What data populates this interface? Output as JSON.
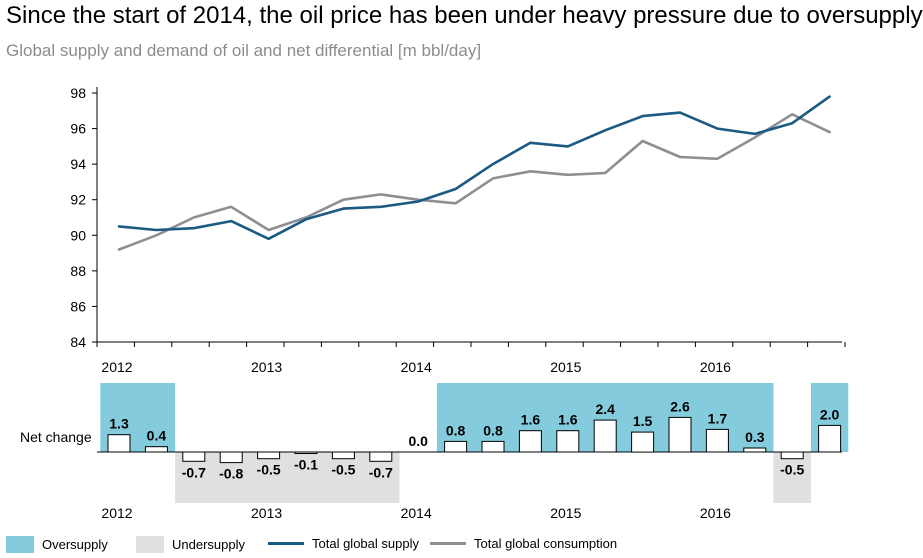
{
  "title": "Since the start of 2014, the oil price has been under heavy pressure due to oversupply",
  "subtitle": "Global supply and demand of oil and net differential [m bbl/day]",
  "colors": {
    "oversupply": "#84ccdd",
    "undersupply": "#e0e0e2",
    "supply": "#1b5a82",
    "consumption": "#8c8f94"
  },
  "chart_data": [
    {
      "type": "line",
      "ylim": [
        84,
        98
      ],
      "yticks": [
        "84",
        "86",
        "88",
        "90",
        "92",
        "94",
        "96",
        "98"
      ],
      "x_labels": [
        "2012",
        "2013",
        "2014",
        "2015",
        "2016"
      ],
      "series": [
        {
          "name": "Total global supply",
          "values": [
            90.5,
            90.3,
            90.4,
            90.8,
            89.8,
            90.9,
            91.5,
            91.6,
            91.9,
            92.6,
            94.0,
            95.2,
            95.0,
            95.9,
            96.7,
            96.9,
            96.0,
            95.7,
            96.3,
            97.8
          ]
        },
        {
          "name": "Total global consumption",
          "values": [
            89.2,
            90.0,
            91.0,
            91.6,
            90.3,
            91.0,
            92.0,
            92.3,
            92.0,
            91.8,
            93.2,
            93.6,
            93.4,
            93.5,
            95.3,
            94.4,
            94.3,
            95.5,
            96.8,
            95.8
          ]
        }
      ]
    },
    {
      "type": "bar",
      "ylabel": "Net change",
      "x_labels": [
        "2012",
        "2013",
        "2014",
        "2015",
        "2016"
      ],
      "values": [
        1.3,
        0.4,
        -0.7,
        -0.8,
        -0.5,
        -0.1,
        -0.5,
        -0.7,
        0.0,
        0.8,
        0.8,
        1.6,
        1.6,
        2.4,
        1.5,
        2.6,
        1.7,
        0.3,
        -0.5,
        2.0
      ],
      "labels": [
        "1.3",
        "0.4",
        "-0.7",
        "-0.8",
        "-0.5",
        "-0.1",
        "-0.5",
        "-0.7",
        "0.0",
        "0.8",
        "0.8",
        "1.6",
        "1.6",
        "2.4",
        "1.5",
        "2.6",
        "1.7",
        "0.3",
        "-0.5",
        "2.0"
      ]
    }
  ],
  "legend": {
    "oversupply": "Oversupply",
    "undersupply": "Undersupply",
    "supply": "Total global supply",
    "consumption": "Total global consumption"
  }
}
